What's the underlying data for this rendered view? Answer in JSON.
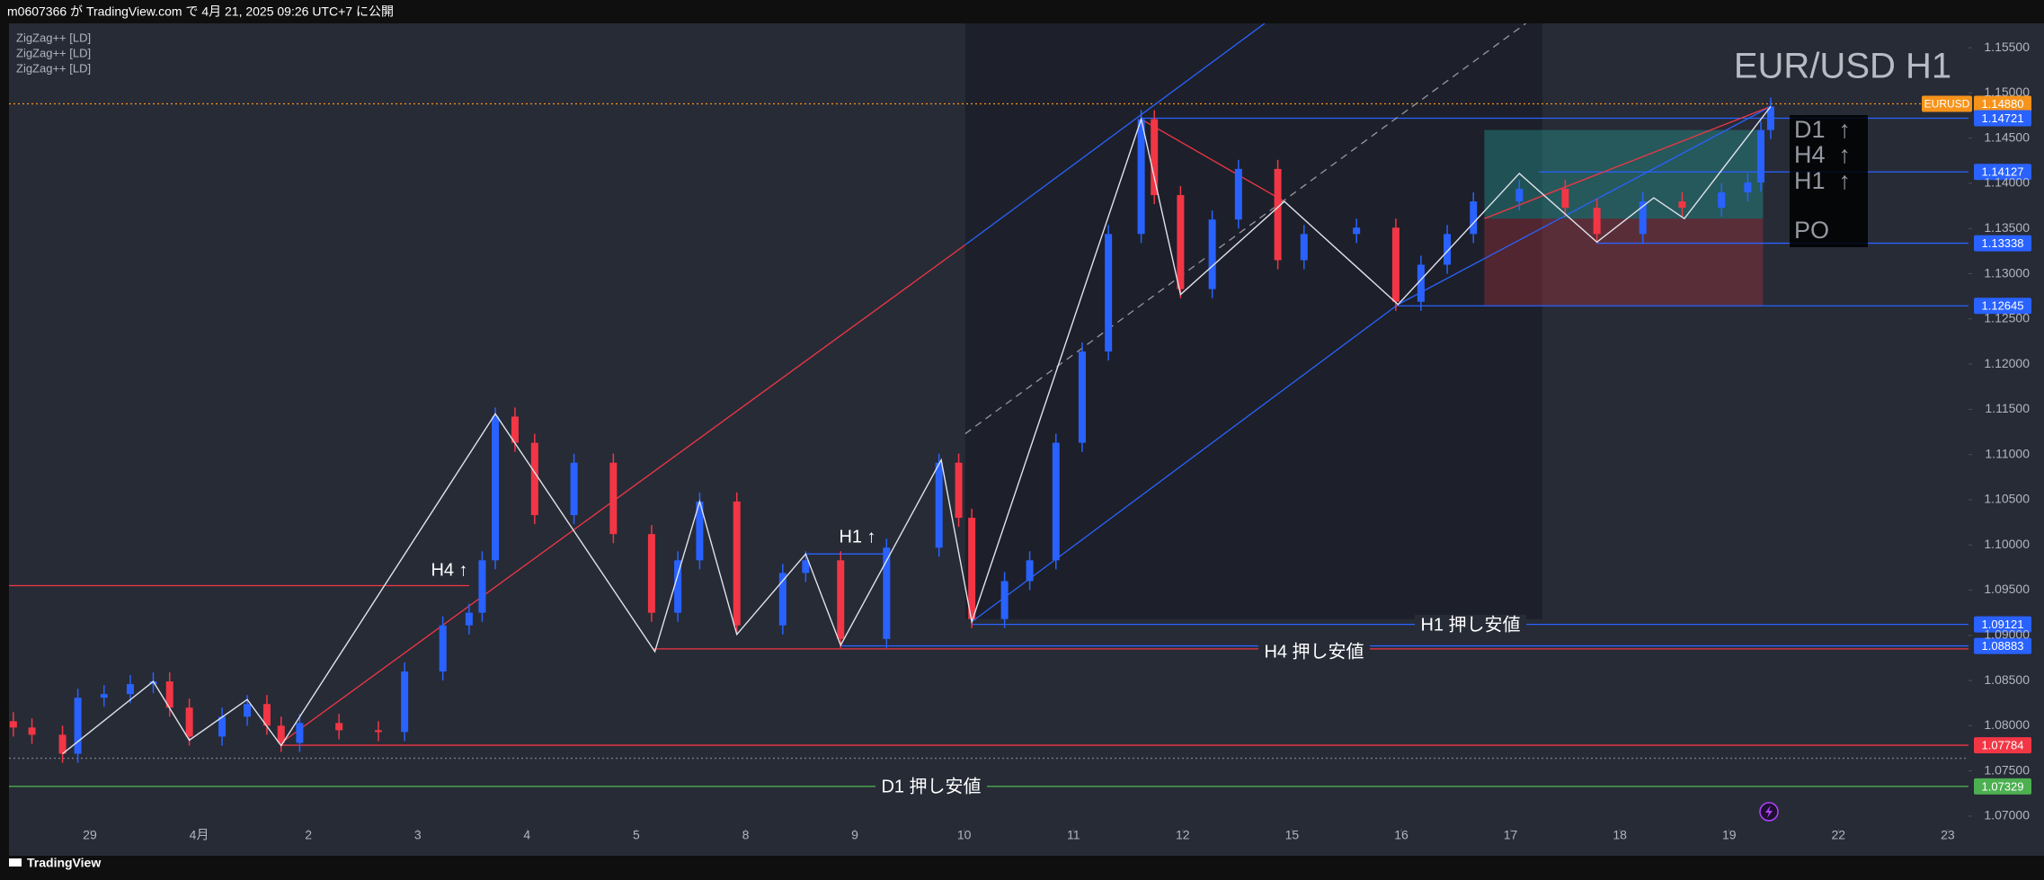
{
  "header": {
    "text": "m0607366 が TradingView.com で 4月 21, 2025 09:26 UTC+7 に公開"
  },
  "footer": {
    "brand": "TradingView"
  },
  "chart_data": {
    "type": "candlestick",
    "title": "EUR/USD H1",
    "symbol": "EURUSD",
    "indicators": [
      "ZigZag++ [LD]",
      "ZigZag++ [LD]",
      "ZigZag++ [LD]"
    ],
    "up_color": "#2962ff",
    "down_color": "#f23645",
    "x": [
      -0.7,
      -0.53,
      -0.25,
      -0.11,
      0.13,
      0.37,
      0.58,
      0.73,
      0.91,
      1.21,
      1.44,
      1.62,
      1.75,
      1.92,
      2.28,
      2.64,
      2.88,
      3.23,
      3.47,
      3.59,
      3.71,
      3.89,
      4.07,
      4.43,
      4.79,
      5.14,
      5.38,
      5.58,
      5.92,
      6.34,
      6.55,
      6.87,
      7.29,
      7.77,
      7.95,
      8.07,
      8.37,
      8.6,
      8.84,
      9.08,
      9.32,
      9.62,
      9.74,
      9.98,
      10.27,
      10.51,
      10.87,
      11.11,
      11.59,
      11.95,
      12.18,
      12.42,
      12.66,
      13.08,
      13.5,
      13.79,
      14.21,
      14.57,
      14.93,
      15.17,
      15.29,
      15.38
    ],
    "open": [
      1.0805,
      1.0798,
      1.079,
      1.0769,
      1.0831,
      1.0835,
      1.0846,
      1.0849,
      1.082,
      1.0788,
      1.081,
      1.0824,
      1.08,
      1.0781,
      1.0803,
      1.0795,
      1.0793,
      1.086,
      1.0911,
      1.0925,
      1.0983,
      1.1142,
      1.1113,
      1.1033,
      1.1091,
      1.1012,
      1.0925,
      1.0983,
      1.1048,
      1.0911,
      1.0969,
      1.0983,
      1.0896,
      1.0997,
      1.1091,
      1.103,
      1.0918,
      1.096,
      1.0983,
      1.1113,
      1.1214,
      1.1344,
      1.1471,
      1.1387,
      1.1283,
      1.136,
      1.1416,
      1.1315,
      1.1344,
      1.1351,
      1.1269,
      1.131,
      1.1344,
      1.138,
      1.1394,
      1.1373,
      1.1344,
      1.138,
      1.1373,
      1.139,
      1.1401,
      1.1459
    ],
    "high": [
      1.0815,
      1.0808,
      1.08,
      1.0841,
      1.0845,
      1.0856,
      1.0859,
      1.0859,
      1.083,
      1.082,
      1.0834,
      1.0834,
      1.081,
      1.0813,
      1.0813,
      1.0805,
      1.087,
      1.0921,
      1.0935,
      1.0993,
      1.1152,
      1.1152,
      1.1123,
      1.1101,
      1.1101,
      1.1022,
      1.0993,
      1.1058,
      1.1058,
      1.0979,
      1.0993,
      1.0993,
      1.1007,
      1.1101,
      1.1101,
      1.104,
      1.097,
      1.0993,
      1.1123,
      1.1224,
      1.1354,
      1.1481,
      1.1481,
      1.1397,
      1.137,
      1.1426,
      1.1426,
      1.1354,
      1.1361,
      1.1361,
      1.132,
      1.1354,
      1.139,
      1.1404,
      1.1404,
      1.1383,
      1.139,
      1.139,
      1.14,
      1.1411,
      1.1469,
      1.1495
    ],
    "low": [
      1.0788,
      1.078,
      1.0759,
      1.0759,
      1.0821,
      1.0825,
      1.0836,
      1.081,
      1.0778,
      1.0778,
      1.08,
      1.079,
      1.0771,
      1.0771,
      1.0785,
      1.0783,
      1.0783,
      1.085,
      1.0901,
      1.0915,
      1.0973,
      1.1103,
      1.1023,
      1.1023,
      1.1002,
      1.0915,
      1.0915,
      1.0973,
      1.0901,
      1.0901,
      1.0959,
      1.0886,
      1.0886,
      1.0987,
      1.102,
      1.0908,
      1.0908,
      1.095,
      1.0973,
      1.1103,
      1.1204,
      1.1334,
      1.1377,
      1.1273,
      1.1273,
      1.135,
      1.1305,
      1.1305,
      1.1334,
      1.1259,
      1.1259,
      1.13,
      1.1334,
      1.137,
      1.1363,
      1.1334,
      1.1334,
      1.1363,
      1.1363,
      1.138,
      1.1391,
      1.1449
    ],
    "close": [
      1.0798,
      1.079,
      1.0769,
      1.0831,
      1.0835,
      1.0846,
      1.0849,
      1.082,
      1.0788,
      1.081,
      1.0824,
      1.08,
      1.0781,
      1.0803,
      1.0795,
      1.0793,
      1.086,
      1.0911,
      1.0925,
      1.0983,
      1.1142,
      1.1113,
      1.1033,
      1.1091,
      1.1012,
      1.0925,
      1.0983,
      1.1048,
      1.0911,
      1.0969,
      1.0983,
      1.0896,
      1.0997,
      1.1091,
      1.103,
      1.0918,
      1.096,
      1.0983,
      1.1113,
      1.1214,
      1.1344,
      1.1471,
      1.1387,
      1.1283,
      1.136,
      1.1416,
      1.1315,
      1.1344,
      1.1351,
      1.1269,
      1.131,
      1.1344,
      1.138,
      1.1394,
      1.1373,
      1.1344,
      1.138,
      1.1373,
      1.139,
      1.1401,
      1.1459,
      1.1485
    ],
    "xlim": [
      -0.74,
      17.19
    ],
    "xticks": [
      {
        "value": 0,
        "label": "29"
      },
      {
        "value": 1,
        "label": "4月"
      },
      {
        "value": 2,
        "label": "2"
      },
      {
        "value": 3,
        "label": "3"
      },
      {
        "value": 4,
        "label": "4"
      },
      {
        "value": 5,
        "label": "5"
      },
      {
        "value": 6,
        "label": "8"
      },
      {
        "value": 7,
        "label": "9"
      },
      {
        "value": 8,
        "label": "10"
      },
      {
        "value": 9,
        "label": "11"
      },
      {
        "value": 10,
        "label": "12"
      },
      {
        "value": 11,
        "label": "15"
      },
      {
        "value": 12,
        "label": "16"
      },
      {
        "value": 13,
        "label": "17"
      },
      {
        "value": 14,
        "label": "18"
      },
      {
        "value": 15,
        "label": "19"
      },
      {
        "value": 16,
        "label": "22"
      },
      {
        "value": 17,
        "label": "23"
      }
    ],
    "ylim": [
      1.0686,
      1.1577
    ],
    "yticks": [
      {
        "value": 1.155,
        "label": "1.15500"
      },
      {
        "value": 1.15,
        "label": "1.15000"
      },
      {
        "value": 1.145,
        "label": "1.14500"
      },
      {
        "value": 1.14,
        "label": "1.14000"
      },
      {
        "value": 1.135,
        "label": "1.13500"
      },
      {
        "value": 1.13,
        "label": "1.13000"
      },
      {
        "value": 1.125,
        "label": "1.12500"
      },
      {
        "value": 1.12,
        "label": "1.12000"
      },
      {
        "value": 1.115,
        "label": "1.11500"
      },
      {
        "value": 1.11,
        "label": "1.11000"
      },
      {
        "value": 1.105,
        "label": "1.10500"
      },
      {
        "value": 1.1,
        "label": "1.10000"
      },
      {
        "value": 1.095,
        "label": "1.09500"
      },
      {
        "value": 1.09,
        "label": "1.09000"
      },
      {
        "value": 1.085,
        "label": "1.08500"
      },
      {
        "value": 1.08,
        "label": "1.08000"
      },
      {
        "value": 1.075,
        "label": "1.07500"
      },
      {
        "value": 1.07,
        "label": "1.07000"
      }
    ],
    "levels": [
      {
        "value": 1.1488,
        "label": "1.14880",
        "color": "#f7931a",
        "from": -0.74,
        "dash": true
      },
      {
        "value": 1.14721,
        "label": "1.14721",
        "color": "#2962ff",
        "from": 9.62
      },
      {
        "value": 1.14127,
        "label": "1.14127",
        "color": "#2962ff",
        "from": 13.26
      },
      {
        "value": 1.13338,
        "label": "1.13338",
        "color": "#2962ff",
        "from": 13.79
      },
      {
        "value": 1.12645,
        "label": "1.12645",
        "color": "#2962ff",
        "from": 11.95
      },
      {
        "value": 1.09121,
        "label": "1.09121",
        "color": "#2962ff",
        "from": 8.07
      },
      {
        "value": 1.0885,
        "color": "#f23645",
        "from": 5.16
      },
      {
        "value": 1.08883,
        "label": "1.08883",
        "color": "#2962ff",
        "from": 6.87
      },
      {
        "value": 1.07784,
        "label": "1.07784",
        "color": "#f23645",
        "from": 1.75
      },
      {
        "value": 1.0764,
        "color": "#787b86",
        "from": -0.74,
        "dash": true
      },
      {
        "value": 1.07329,
        "label": "1.07329",
        "color": "#4caf50",
        "from": -0.74
      }
    ],
    "boxes": [
      {
        "x": [
          8.01,
          13.29
        ],
        "y": [
          1.0918,
          1.1577
        ],
        "color": "rgba(18,20,28,0.45)"
      },
      {
        "x": [
          12.76,
          15.31
        ],
        "y": [
          1.1361,
          1.1459
        ],
        "color": "rgba(38,166,154,0.38)"
      },
      {
        "x": [
          12.76,
          15.31
        ],
        "y": [
          1.1265,
          1.1361
        ],
        "color": "rgba(242,54,69,0.25)"
      }
    ],
    "segments": [
      {
        "x": [
          1.75,
          8.01
        ],
        "y": [
          1.0781,
          1.1332
        ],
        "color": "#f23645"
      },
      {
        "x": [
          8.01,
          10.75
        ],
        "y": [
          1.1332,
          1.1577
        ],
        "color": "#2962ff"
      },
      {
        "x": [
          8.07,
          11.97
        ],
        "y": [
          1.0915,
          1.1266
        ],
        "color": "#2962ff"
      },
      {
        "x": [
          11.97,
          15.38
        ],
        "y": [
          1.1266,
          1.1485
        ],
        "color": "#2962ff"
      },
      {
        "x": [
          9.62,
          10.93
        ],
        "y": [
          1.1471,
          1.138
        ],
        "color": "#f23645"
      },
      {
        "x": [
          12.76,
          15.38
        ],
        "y": [
          1.1361,
          1.1485
        ],
        "color": "#f23645"
      },
      {
        "x": [
          8.01,
          13.14
        ],
        "y": [
          1.1123,
          1.1577
        ],
        "color": "#9598a1",
        "dash": true
      },
      {
        "x": [
          6.55,
          7.29
        ],
        "y": [
          1.099,
          1.099
        ],
        "color": "#2962ff"
      },
      {
        "x": [
          -0.74,
          3.47
        ],
        "y": [
          1.0955,
          1.0955
        ],
        "color": "#f23645"
      }
    ],
    "zigzag": {
      "color": "#e0e3eb",
      "x": [
        -0.25,
        0.58,
        0.91,
        1.44,
        1.75,
        3.71,
        5.17,
        5.58,
        5.92,
        6.55,
        6.87,
        7.79,
        8.07,
        9.62,
        9.98,
        10.93,
        11.97,
        13.08,
        13.79,
        14.31,
        14.59,
        15.38
      ],
      "y": [
        1.0769,
        1.0849,
        1.0784,
        1.0829,
        1.0778,
        1.1145,
        1.0882,
        1.1048,
        1.0901,
        1.099,
        1.0889,
        1.1094,
        1.0915,
        1.1471,
        1.1277,
        1.138,
        1.1266,
        1.1411,
        1.1335,
        1.1384,
        1.1361,
        1.1485
      ]
    },
    "annotations": [
      "H4 ↑",
      "H1 ↑",
      "H1 押し安値",
      "H4 押し安値",
      "D1 押し安値"
    ],
    "trend_box": [
      "D1  ↑",
      "H4  ↑",
      "H1  ↑",
      "PO"
    ]
  }
}
